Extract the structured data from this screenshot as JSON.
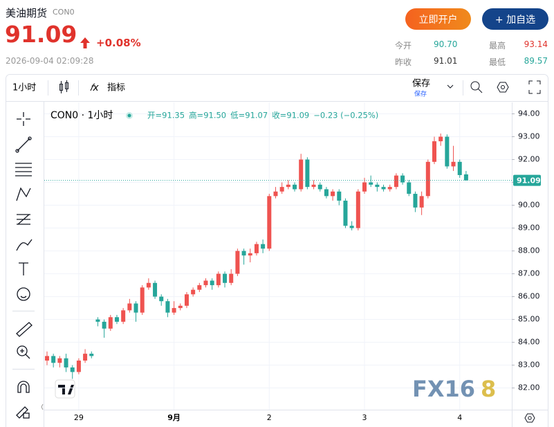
{
  "header": {
    "title": "美油期货",
    "code": "CON0",
    "price": "91.09",
    "change": "+0.08%",
    "time": "2026-09-04 02:09:28"
  },
  "buttons": [
    "立即开户",
    "+ 加自选"
  ],
  "stats": [
    {
      "label": "今开",
      "value": "90.70"
    },
    {
      "label": "最高",
      "value": "93.14"
    },
    {
      "label": "昨收",
      "value": "91.01"
    },
    {
      "label": "最低",
      "value": "89.57"
    }
  ],
  "toolbar": {
    "interval": "1小时",
    "indicator": "指标",
    "save": "保存",
    "save_sub": "保存"
  },
  "chart_data": {
    "type": "candlestick",
    "symbol": "CON0 · 1小时",
    "ohlc_legend": [
      "开=91.35",
      "高=91.50",
      "低=91.07",
      "收=91.09",
      "−0.23 (−0.25%)"
    ],
    "categories": [
      null,
      null,
      null,
      null,
      null,
      "29",
      null,
      null,
      null,
      null,
      null,
      null,
      null,
      null,
      null,
      null,
      null,
      null,
      null,
      null,
      "9月",
      null,
      null,
      null,
      null,
      null,
      null,
      null,
      null,
      null,
      null,
      null,
      null,
      null,
      null,
      "2",
      null,
      null,
      null,
      null,
      null,
      null,
      null,
      null,
      null,
      null,
      null,
      null,
      null,
      null,
      "3",
      null,
      null,
      null,
      null,
      null,
      null,
      null,
      null,
      null,
      null,
      null,
      null,
      null,
      null,
      "4",
      null
    ],
    "open": [
      83.2,
      83.4,
      83.1,
      83.3,
      82.9,
      82.7,
      83.2,
      83.5,
      85.0,
      84.9,
      84.6,
      85.1,
      84.9,
      85.4,
      85.7,
      85.3,
      86.4,
      86.6,
      86.0,
      85.8,
      85.3,
      85.5,
      85.6,
      86.1,
      86.3,
      86.5,
      86.7,
      86.5,
      87.0,
      86.6,
      87.0,
      88.0,
      87.8,
      87.9,
      88.3,
      88.1,
      90.4,
      90.6,
      90.8,
      90.9,
      90.7,
      92.0,
      90.8,
      90.9,
      90.7,
      90.4,
      90.6,
      90.2,
      89.1,
      89.0,
      90.6,
      91.0,
      90.9,
      90.8,
      90.7,
      90.8,
      91.3,
      91.0,
      90.5,
      89.9,
      90.4,
      91.9,
      92.8,
      93.0,
      91.7,
      91.9,
      91.35
    ],
    "high": [
      83.6,
      83.5,
      83.4,
      83.5,
      83.0,
      83.3,
      83.7,
      83.6,
      85.1,
      85.0,
      85.2,
      85.2,
      85.5,
      85.9,
      85.8,
      86.5,
      86.8,
      86.7,
      86.1,
      85.9,
      85.8,
      85.7,
      86.2,
      86.4,
      86.6,
      86.8,
      86.8,
      87.1,
      87.1,
      87.2,
      88.1,
      88.1,
      88.1,
      88.4,
      88.5,
      90.5,
      90.8,
      91.0,
      91.1,
      91.0,
      92.25,
      92.1,
      91.1,
      91.0,
      90.8,
      90.7,
      90.7,
      90.3,
      89.3,
      90.7,
      91.2,
      91.3,
      91.0,
      90.9,
      90.9,
      91.4,
      91.4,
      91.1,
      90.6,
      90.6,
      92.0,
      93.0,
      93.14,
      93.1,
      92.6,
      92.0,
      91.5
    ],
    "low": [
      83.0,
      82.9,
      82.9,
      82.7,
      82.4,
      82.6,
      83.1,
      83.3,
      84.7,
      84.2,
      84.5,
      84.8,
      84.8,
      85.3,
      84.9,
      85.2,
      86.3,
      85.9,
      85.6,
      85.1,
      85.2,
      85.4,
      85.5,
      86.0,
      86.2,
      86.4,
      86.3,
      86.4,
      86.4,
      86.5,
      86.9,
      87.4,
      87.5,
      87.8,
      87.9,
      88.0,
      90.3,
      90.5,
      90.7,
      90.6,
      90.6,
      90.7,
      90.7,
      90.6,
      90.3,
      90.2,
      90.0,
      89.0,
      88.9,
      88.9,
      90.5,
      90.8,
      90.6,
      90.6,
      90.6,
      90.7,
      90.9,
      90.4,
      89.7,
      89.57,
      90.3,
      91.8,
      92.6,
      91.6,
      91.5,
      91.2,
      91.07
    ],
    "close": [
      83.4,
      83.1,
      83.3,
      82.9,
      82.7,
      83.2,
      83.5,
      83.4,
      84.9,
      84.6,
      85.1,
      84.9,
      85.4,
      85.7,
      85.3,
      86.4,
      86.6,
      86.0,
      85.8,
      85.3,
      85.5,
      85.6,
      86.1,
      86.3,
      86.5,
      86.7,
      86.5,
      87.0,
      86.6,
      87.0,
      88.0,
      87.8,
      87.9,
      88.3,
      88.1,
      90.4,
      90.6,
      90.8,
      90.9,
      90.7,
      92.0,
      90.8,
      90.9,
      90.7,
      90.4,
      90.6,
      90.2,
      89.1,
      89.0,
      90.6,
      91.0,
      90.9,
      90.8,
      90.7,
      90.8,
      91.3,
      91.0,
      90.5,
      89.9,
      90.4,
      91.9,
      92.8,
      93.0,
      91.7,
      91.9,
      91.32,
      91.09
    ],
    "up_color": "#ef5350",
    "down_color": "#26a69a",
    "last_price": 91.09,
    "ylim": [
      81.05,
      94.5
    ],
    "yticks": [
      {
        "value": 82,
        "label": "82.00"
      },
      {
        "value": 83,
        "label": "83.00"
      },
      {
        "value": 84,
        "label": "84.00"
      },
      {
        "value": 85,
        "label": "85.00"
      },
      {
        "value": 86,
        "label": "86.00"
      },
      {
        "value": 87,
        "label": "87.00"
      },
      {
        "value": 88,
        "label": "88.00"
      },
      {
        "value": 89,
        "label": "89.00"
      },
      {
        "value": 90,
        "label": "90.00"
      },
      {
        "value": 91,
        "label": "91.00"
      },
      {
        "value": 92,
        "label": "92.00"
      },
      {
        "value": 93,
        "label": "93.00"
      },
      {
        "value": 94,
        "label": "94.00"
      }
    ],
    "grid": true
  },
  "watermark": [
    "FX16",
    "8"
  ]
}
